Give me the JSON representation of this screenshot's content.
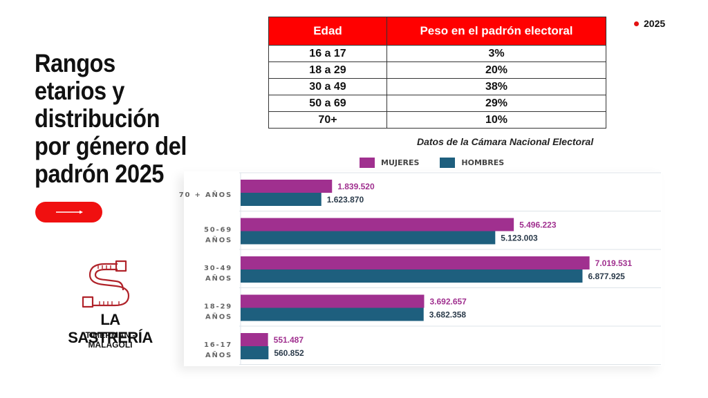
{
  "title": "Rangos etarios y distribución por género del padrón 2025",
  "badge": "2025",
  "table": {
    "headers": [
      "Edad",
      "Peso en el padrón electoral"
    ],
    "rows": [
      [
        "16 a 17",
        "3%"
      ],
      [
        "18 a 29",
        "20%"
      ],
      [
        "30 a 49",
        "38%"
      ],
      [
        "50 a 69",
        "29%"
      ],
      [
        "70+",
        "10%"
      ]
    ]
  },
  "source": "Datos de la Cámara Nacional Electoral",
  "logo": {
    "name": "LA SASTRERÍA",
    "subtitle": "TIMERMAN - MALAGOLI"
  },
  "colors": {
    "accent": "#f01010",
    "mujeres": "#a0308f",
    "hombres": "#1e5f7e"
  },
  "chart_data": {
    "type": "bar",
    "orientation": "horizontal",
    "categories": [
      [
        "70 + AÑOS"
      ],
      [
        "50-69",
        "AÑOS"
      ],
      [
        "30-49",
        "AÑOS"
      ],
      [
        "18-29",
        "AÑOS"
      ],
      [
        "16-17",
        "AÑOS"
      ]
    ],
    "series": [
      {
        "name": "MUJERES",
        "values": [
          1839520,
          5496223,
          7019531,
          3692657,
          551487
        ],
        "labels": [
          "1.839.520",
          "5.496.223",
          "7.019.531",
          "3.692.657",
          "551.487"
        ]
      },
      {
        "name": "HOMBRES",
        "values": [
          1623870,
          5123003,
          6877925,
          3682358,
          560852
        ],
        "labels": [
          "1.623.870",
          "5.123.003",
          "6.877.925",
          "3.682.358",
          "560.852"
        ]
      }
    ],
    "xlim": [
      0,
      7400000
    ],
    "legend": "top"
  }
}
